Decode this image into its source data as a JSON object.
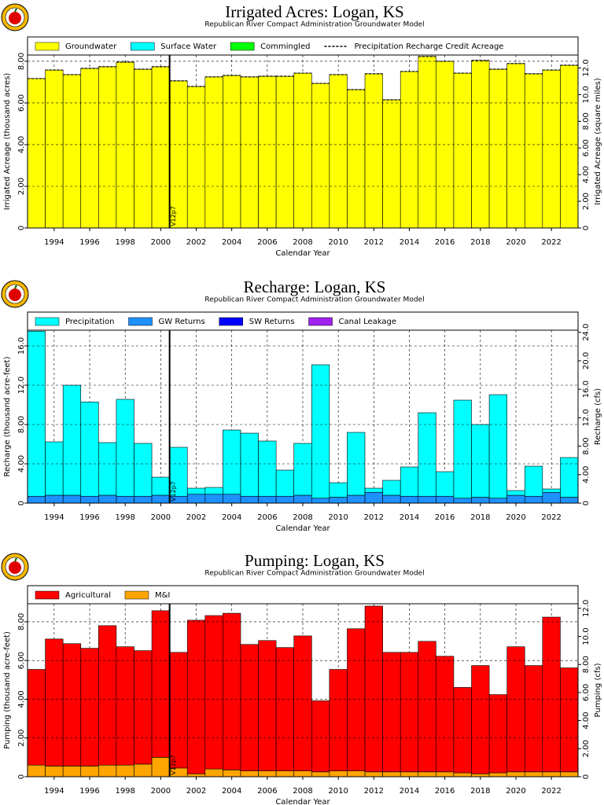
{
  "chart_data": [
    {
      "type": "bar",
      "stacked": true,
      "grid": true,
      "title": "Irrigated Acres: Logan, KS",
      "subtitle": "Republican River Compact Administration Groundwater Model",
      "xlabel": "Calendar Year",
      "ylabel": "Irrigated Acreage (thousand acres)",
      "y2label": "Irrigated Acreage (square miles)",
      "x": [
        1993,
        1994,
        1995,
        1996,
        1997,
        1998,
        1999,
        2000,
        2001,
        2002,
        2003,
        2004,
        2005,
        2006,
        2007,
        2008,
        2009,
        2010,
        2011,
        2012,
        2013,
        2014,
        2015,
        2016,
        2017,
        2018,
        2019,
        2020,
        2021,
        2022,
        2023
      ],
      "xlim": [
        1992.5,
        2023.5
      ],
      "xticks": [
        1994,
        1996,
        1998,
        2000,
        2002,
        2004,
        2006,
        2008,
        2010,
        2012,
        2014,
        2016,
        2018,
        2020,
        2022
      ],
      "ylim": [
        0,
        8.3
      ],
      "yticks": [
        0,
        {
          "value": 2,
          "label": "2.00"
        },
        {
          "value": 4,
          "label": "4.00"
        },
        {
          "value": 6,
          "label": "6.00"
        },
        {
          "value": 8,
          "label": "8.00"
        }
      ],
      "y2lim": [
        0,
        12.97
      ],
      "y2ticks": [
        0,
        {
          "value": 2,
          "label": "2.00"
        },
        {
          "value": 4,
          "label": "4.00"
        },
        {
          "value": 6,
          "label": "6.00"
        },
        {
          "value": 8,
          "label": "8.00"
        },
        {
          "value": 10,
          "label": "10.0"
        },
        {
          "value": 12,
          "label": "12.0"
        }
      ],
      "annotation": {
        "text": "V12p7",
        "x": 2000.5
      },
      "series": [
        {
          "name": "Groundwater",
          "color": "#ffff00",
          "values": [
            7.17,
            7.58,
            7.36,
            7.66,
            7.74,
            7.96,
            7.62,
            7.74,
            7.06,
            6.79,
            7.25,
            7.32,
            7.25,
            7.28,
            7.28,
            7.43,
            6.94,
            7.36,
            6.64,
            7.4,
            6.15,
            7.51,
            8.23,
            8.0,
            7.43,
            8.04,
            7.62,
            7.89,
            7.4,
            7.58,
            7.81
          ]
        },
        {
          "name": "Surface Water",
          "color": "#00ffff",
          "values": [
            0,
            0,
            0,
            0,
            0,
            0,
            0,
            0,
            0,
            0,
            0,
            0,
            0,
            0,
            0,
            0,
            0,
            0,
            0,
            0,
            0,
            0,
            0,
            0,
            0,
            0,
            0,
            0,
            0,
            0,
            0
          ]
        },
        {
          "name": "Commingled",
          "color": "#00ff00",
          "values": [
            0,
            0,
            0,
            0,
            0,
            0,
            0,
            0,
            0,
            0,
            0,
            0,
            0,
            0,
            0,
            0,
            0,
            0,
            0,
            0,
            0,
            0,
            0,
            0,
            0,
            0,
            0,
            0,
            0,
            0,
            0
          ]
        },
        {
          "name": "Precipitation Recharge Credit Acreage",
          "color": "#000000",
          "dashed": true,
          "values": [
            7.17,
            7.58,
            7.36,
            7.66,
            7.74,
            7.96,
            7.62,
            7.74,
            7.06,
            6.79,
            7.25,
            7.32,
            7.25,
            7.28,
            7.28,
            7.43,
            6.94,
            7.36,
            6.64,
            7.4,
            6.15,
            7.51,
            8.23,
            8.0,
            7.43,
            8.04,
            7.62,
            7.89,
            7.4,
            7.58,
            7.81
          ]
        }
      ]
    },
    {
      "type": "bar",
      "stacked": true,
      "grid": true,
      "title": "Recharge: Logan, KS",
      "subtitle": "Republican River Compact Administration Groundwater Model",
      "xlabel": "Calendar Year",
      "ylabel": "Recharge (thousand acre-feet)",
      "y2label": "Recharge (cfs)",
      "x": [
        1993,
        1994,
        1995,
        1996,
        1997,
        1998,
        1999,
        2000,
        2001,
        2002,
        2003,
        2004,
        2005,
        2006,
        2007,
        2008,
        2009,
        2010,
        2011,
        2012,
        2013,
        2014,
        2015,
        2016,
        2017,
        2018,
        2019,
        2020,
        2021,
        2022,
        2023
      ],
      "xlim": [
        1992.5,
        2023.5
      ],
      "xticks": [
        1994,
        1996,
        1998,
        2000,
        2002,
        2004,
        2006,
        2008,
        2010,
        2012,
        2014,
        2016,
        2018,
        2020,
        2022
      ],
      "ylim": [
        0,
        17.6
      ],
      "yticks": [
        0,
        {
          "value": 4,
          "label": "4.00"
        },
        {
          "value": 8,
          "label": "8.00"
        },
        {
          "value": 12,
          "label": "12.0"
        },
        {
          "value": 16,
          "label": "16.0"
        }
      ],
      "y2lim": [
        0,
        24.3
      ],
      "y2ticks": [
        0,
        {
          "value": 4,
          "label": "4.00"
        },
        {
          "value": 8,
          "label": "8.00"
        },
        {
          "value": 12,
          "label": "12.0"
        },
        {
          "value": 16,
          "label": "16.0"
        },
        {
          "value": 20,
          "label": "20.0"
        },
        {
          "value": 24,
          "label": "24.0"
        }
      ],
      "annotation": {
        "text": "V12p7",
        "x": 2000.5
      },
      "series": [
        {
          "name": "Precipitation",
          "color": "#00ffff",
          "values": [
            16.8,
            5.44,
            11.2,
            9.6,
            5.36,
            9.86,
            5.38,
            1.84,
            4.98,
            0.62,
            0.7,
            6.54,
            6.42,
            5.62,
            2.66,
            5.28,
            13.58,
            1.48,
            6.4,
            0.42,
            1.52,
            2.98,
            8.5,
            2.5,
            9.98,
            7.4,
            10.54,
            0.48,
            3.06,
            0.34,
            4.04
          ]
        },
        {
          "name": "GW Returns",
          "color": "#1e90ff",
          "values": [
            0.7,
            0.8,
            0.8,
            0.7,
            0.8,
            0.7,
            0.7,
            0.8,
            0.7,
            0.9,
            0.9,
            0.9,
            0.7,
            0.7,
            0.7,
            0.8,
            0.5,
            0.6,
            0.8,
            1.1,
            0.8,
            0.7,
            0.7,
            0.7,
            0.5,
            0.6,
            0.5,
            0.8,
            0.7,
            1.1,
            0.6
          ]
        },
        {
          "name": "SW Returns",
          "color": "#0000ff",
          "values": [
            0,
            0,
            0,
            0,
            0,
            0,
            0,
            0,
            0,
            0,
            0,
            0,
            0,
            0,
            0,
            0,
            0,
            0,
            0,
            0,
            0,
            0,
            0,
            0,
            0,
            0,
            0,
            0,
            0,
            0,
            0
          ]
        },
        {
          "name": "Canal Leakage",
          "color": "#a020f0",
          "values": [
            0,
            0,
            0,
            0,
            0,
            0,
            0,
            0,
            0,
            0,
            0,
            0,
            0,
            0,
            0,
            0,
            0,
            0,
            0,
            0,
            0,
            0,
            0,
            0,
            0,
            0,
            0,
            0,
            0,
            0,
            0
          ]
        }
      ]
    },
    {
      "type": "bar",
      "stacked": true,
      "grid": true,
      "title": "Pumping: Logan, KS",
      "subtitle": "Republican River Compact Administration Groundwater Model",
      "xlabel": "Calendar Year",
      "ylabel": "Pumping (thousand acre-feet)",
      "y2label": "Pumping (cfs)",
      "x": [
        1993,
        1994,
        1995,
        1996,
        1997,
        1998,
        1999,
        2000,
        2001,
        2002,
        2003,
        2004,
        2005,
        2006,
        2007,
        2008,
        2009,
        2010,
        2011,
        2012,
        2013,
        2014,
        2015,
        2016,
        2017,
        2018,
        2019,
        2020,
        2021,
        2022,
        2023
      ],
      "xlim": [
        1992.5,
        2023.5
      ],
      "xticks": [
        1994,
        1996,
        1998,
        2000,
        2002,
        2004,
        2006,
        2008,
        2010,
        2012,
        2014,
        2016,
        2018,
        2020,
        2022
      ],
      "ylim": [
        0,
        8.93
      ],
      "yticks": [
        0,
        {
          "value": 2,
          "label": "2.00"
        },
        {
          "value": 4,
          "label": "4.00"
        },
        {
          "value": 6,
          "label": "6.00"
        },
        {
          "value": 8,
          "label": "8.00"
        }
      ],
      "y2lim": [
        0,
        12.33
      ],
      "y2ticks": [
        0,
        {
          "value": 2,
          "label": "2.00"
        },
        {
          "value": 4,
          "label": "4.00"
        },
        {
          "value": 6,
          "label": "6.00"
        },
        {
          "value": 8,
          "label": "8.00"
        },
        {
          "value": 10,
          "label": "10.0"
        },
        {
          "value": 12,
          "label": "12.0"
        }
      ],
      "annotation": {
        "text": "V12p7",
        "x": 2000.5
      },
      "series": [
        {
          "name": "Agricultural",
          "color": "#ff0000",
          "values": [
            4.94,
            6.56,
            6.32,
            6.08,
            7.2,
            6.11,
            5.86,
            7.57,
            5.97,
            7.93,
            7.92,
            8.09,
            6.53,
            6.73,
            6.37,
            6.97,
            3.67,
            5.24,
            7.34,
            8.56,
            6.17,
            6.17,
            6.74,
            5.97,
            4.41,
            5.59,
            4.04,
            6.46,
            5.49,
            7.99,
            5.37
          ]
        },
        {
          "name": "M&I",
          "color": "#ffa500",
          "values": [
            0.6,
            0.55,
            0.55,
            0.55,
            0.6,
            0.6,
            0.65,
            1.0,
            0.45,
            0.15,
            0.4,
            0.35,
            0.3,
            0.3,
            0.3,
            0.3,
            0.25,
            0.3,
            0.3,
            0.25,
            0.25,
            0.25,
            0.25,
            0.25,
            0.2,
            0.15,
            0.2,
            0.25,
            0.25,
            0.25,
            0.25
          ]
        }
      ]
    }
  ]
}
